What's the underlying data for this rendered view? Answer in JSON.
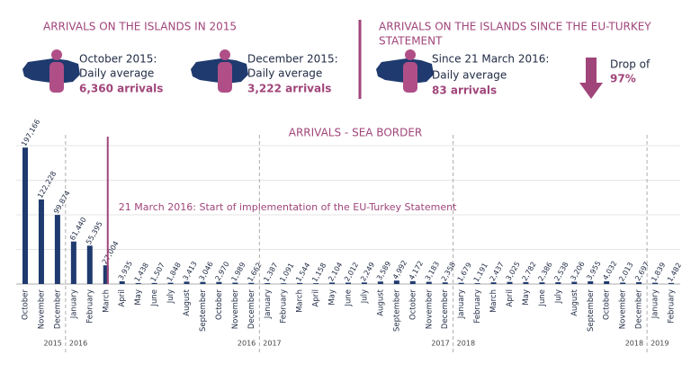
{
  "header": {
    "left_title": "ARRIVALS ON THE ISLANDS IN 2015",
    "right_title": [
      "ARRIVALS ON THE ISLANDS SINCE THE EU-TURKEY",
      "STATEMENT"
    ],
    "stats": [
      {
        "line1": "October 2015:",
        "line2": "Daily average",
        "line3": "6,360 arrivals"
      },
      {
        "line1": "December 2015:",
        "line2": "Daily average",
        "line3": "3,222 arrivals"
      },
      {
        "line1": "Since 21 March 2016:",
        "line2": "Daily average",
        "line3": "83 arrivals"
      }
    ],
    "drop": {
      "line1": "Drop of",
      "line2": "97%"
    }
  },
  "chart_data": {
    "type": "bar",
    "title": "ARRIVALS - SEA BORDER",
    "annotation": "21 March 2016: Start of implementation of the EU-Turkey Statement",
    "annotation_category": 5,
    "color": "#1f3a6e",
    "annotation_color": "#a0457a",
    "categories": [
      "October",
      "November",
      "December",
      "January",
      "February",
      "March",
      "April",
      "May",
      "June",
      "July",
      "August",
      "September",
      "October",
      "November",
      "December",
      "January",
      "February",
      "March",
      "April",
      "May",
      "June",
      "July",
      "August",
      "September",
      "October",
      "November",
      "December",
      "January",
      "February",
      "March",
      "April",
      "May",
      "June",
      "July",
      "August",
      "September",
      "October",
      "November",
      "December",
      "January",
      "February"
    ],
    "values": [
      197166,
      122228,
      99874,
      61440,
      55395,
      27004,
      3935,
      1438,
      1507,
      1848,
      3413,
      3046,
      2970,
      1989,
      1662,
      1387,
      1091,
      1544,
      1158,
      2104,
      2012,
      2249,
      3589,
      4992,
      4172,
      3183,
      2358,
      1679,
      1191,
      2437,
      3025,
      2782,
      2386,
      2538,
      3206,
      3955,
      4032,
      2013,
      2697,
      1839,
      1482
    ],
    "value_labels": [
      "197,166",
      "122,228",
      "99,874",
      "61,440",
      "55,395",
      "27,004",
      "3,935",
      "1,438",
      "1,507",
      "1,848",
      "3,413",
      "3,046",
      "2,970",
      "1,989",
      "1,662",
      "1,387",
      "1,091",
      "1,544",
      "1,158",
      "2,104",
      "2,012",
      "2,249",
      "3,589",
      "4,992",
      "4,172",
      "3,183",
      "2,358",
      "1,679",
      "1,191",
      "2,437",
      "3,025",
      "2,782",
      "2,386",
      "2,538",
      "3,206",
      "3,955",
      "4,032",
      "2,013",
      "2,697",
      "1,839",
      "1,482"
    ],
    "year_labels": [
      "2015",
      "2016",
      "2016",
      "2017",
      "2017",
      "2018",
      "2018",
      "2019"
    ],
    "ylim": [
      0,
      200000
    ],
    "yticks": [
      0,
      50000,
      100000,
      150000,
      200000
    ],
    "grid": true
  }
}
